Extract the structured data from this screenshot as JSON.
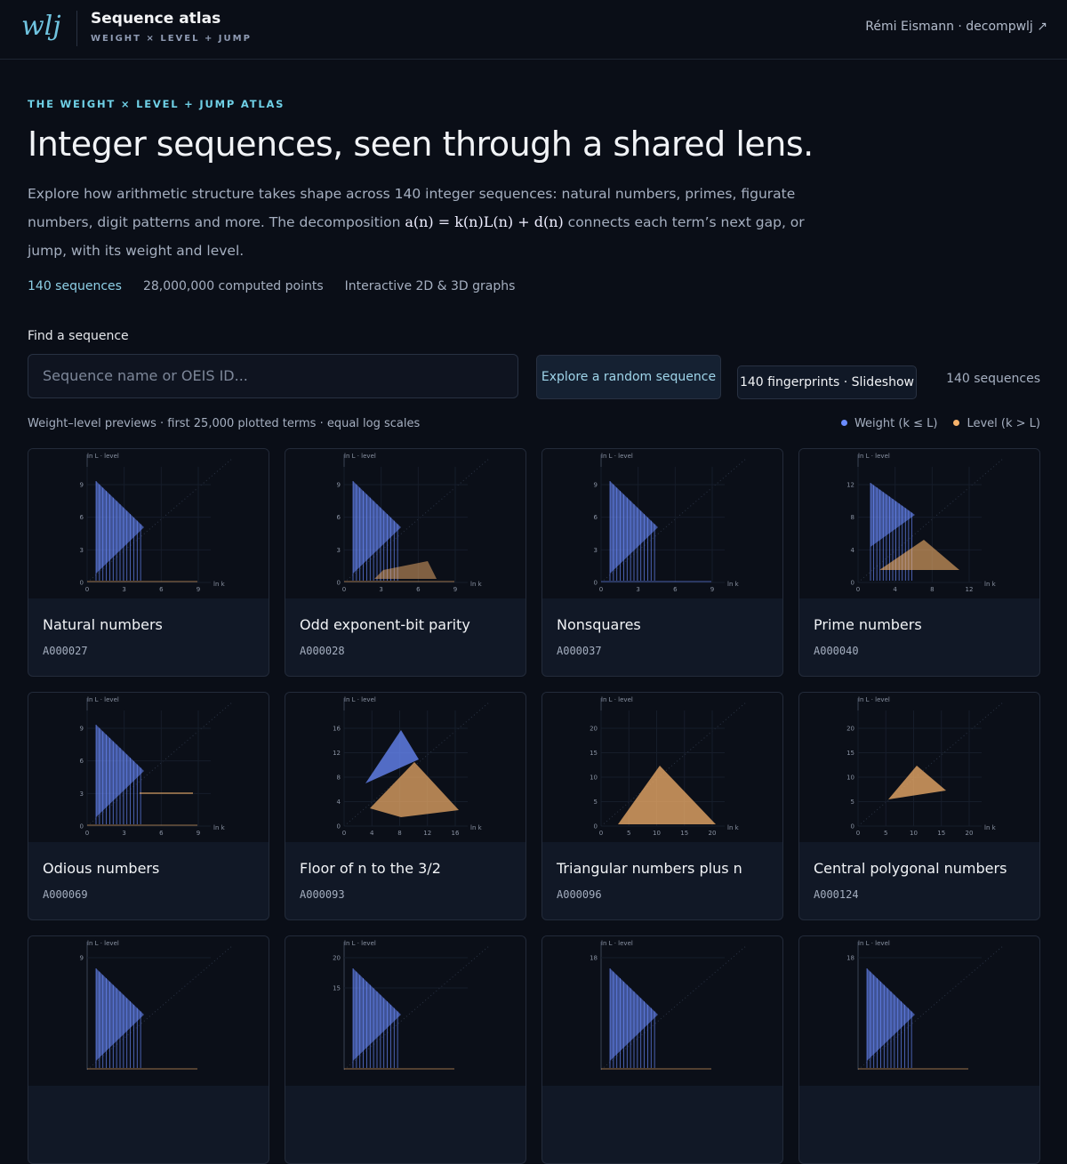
{
  "header": {
    "logo": "wlj",
    "title": "Sequence atlas",
    "subtitle": "WEIGHT × LEVEL + JUMP",
    "author": "Rémi Eismann · decompwlj ↗"
  },
  "hero": {
    "eyebrow": "THE WEIGHT × LEVEL + JUMP ATLAS",
    "title": "Integer sequences, seen through a shared lens.",
    "description": {
      "before": "Explore how arithmetic structure takes shape across 140 integer sequences: natural numbers, primes, figurate numbers, digit patterns and more. The decomposition ",
      "formula": "a(n) = k(n)L(n) + d(n)",
      "after": " connects each term’s next gap, or jump, with its weight and level."
    },
    "stats": [
      "140 sequences",
      "28,000,000 computed points",
      "Interactive 2D & 3D graphs"
    ]
  },
  "search": {
    "label": "Find a sequence",
    "placeholder": "Sequence name or OEIS ID...",
    "random_button": "Explore a random sequence",
    "slideshow_button": "140 fingerprints · Slideshow",
    "count": "140 sequences"
  },
  "grid": {
    "caption": "Weight–level previews · first 25,000 plotted terms · equal log scales",
    "legend": [
      "Weight (k ≤ L)",
      "Level (k > L)"
    ],
    "cards": [
      {
        "title": "Natural numbers",
        "id": "A000027",
        "preview": {
          "y_label": "ln L · level",
          "x_label": "ln k",
          "xticks": [
            0,
            3,
            6,
            9
          ],
          "yticks": [
            0,
            3,
            6,
            9
          ]
        }
      },
      {
        "title": "Odd exponent-bit parity",
        "id": "A000028",
        "preview": {
          "y_label": "ln L · level",
          "x_label": "ln k",
          "xticks": [
            0,
            3,
            6,
            9
          ],
          "yticks": [
            0,
            3,
            6,
            9
          ]
        }
      },
      {
        "title": "Nonsquares",
        "id": "A000037",
        "preview": {
          "y_label": "ln L · level",
          "x_label": "ln k",
          "xticks": [
            0,
            3,
            6,
            9
          ],
          "yticks": [
            0,
            3,
            6,
            9
          ]
        }
      },
      {
        "title": "Prime numbers",
        "id": "A000040",
        "preview": {
          "y_label": "ln L · level",
          "x_label": "ln k",
          "xticks": [
            0,
            4,
            8,
            12
          ],
          "yticks": [
            0,
            4,
            8,
            12
          ]
        }
      },
      {
        "title": "Odious numbers",
        "id": "A000069",
        "preview": {
          "y_label": "ln L · level",
          "x_label": "ln k",
          "xticks": [
            0,
            3,
            6,
            9
          ],
          "yticks": [
            0,
            3,
            6,
            9
          ]
        }
      },
      {
        "title": "Floor of n to the 3/2",
        "id": "A000093",
        "preview": {
          "y_label": "ln L · level",
          "x_label": "ln k",
          "xticks": [
            0,
            4,
            8,
            12,
            16
          ],
          "yticks": [
            0,
            4,
            8,
            12,
            16
          ]
        }
      },
      {
        "title": "Triangular numbers plus n",
        "id": "A000096",
        "preview": {
          "y_label": "ln L · level",
          "x_label": "ln k",
          "xticks": [
            0,
            5,
            10,
            15,
            20
          ],
          "yticks": [
            0,
            5,
            10,
            15,
            20
          ]
        }
      },
      {
        "title": "Central polygonal numbers",
        "id": "A000124",
        "preview": {
          "y_label": "ln L · level",
          "x_label": "ln k",
          "xticks": [
            0,
            5,
            10,
            15,
            20
          ],
          "yticks": [
            0,
            5,
            10,
            15,
            20
          ]
        }
      },
      {
        "preview": {
          "y_label": "ln L · level",
          "yticks": [
            9
          ]
        }
      },
      {
        "preview": {
          "y_label": "ln L · level",
          "yticks": [
            15,
            20
          ]
        }
      },
      {
        "preview": {
          "y_label": "ln L · level",
          "yticks": [
            18
          ]
        }
      },
      {
        "preview": {
          "y_label": "ln L · level",
          "yticks": [
            18
          ]
        }
      }
    ]
  }
}
